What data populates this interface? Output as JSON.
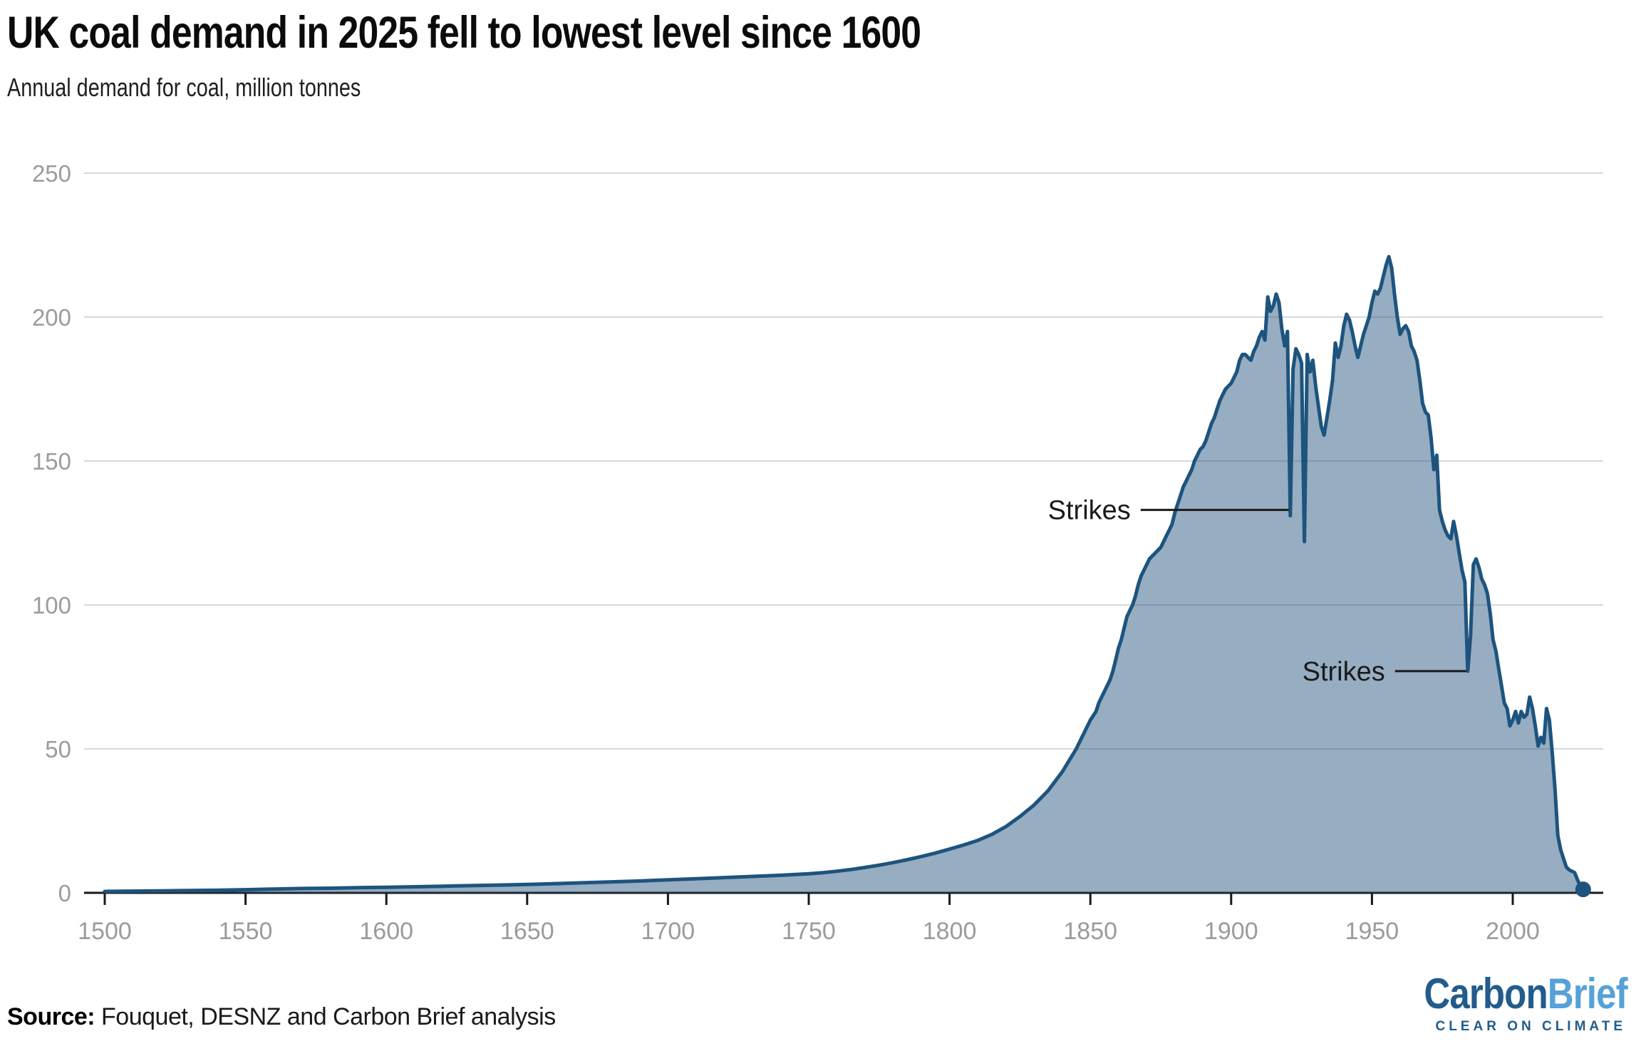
{
  "header": {
    "title": "UK coal demand in 2025 fell to lowest level since 1600",
    "subtitle": "Annual demand for coal, million tonnes"
  },
  "footer": {
    "source_label": "Source:",
    "source_text": " Fouquet, DESNZ and Carbon Brief analysis"
  },
  "logo": {
    "part1": "Carbon",
    "part2": "Brief",
    "tagline": "CLEAR ON CLIMATE",
    "dark_blue": "#215c8c",
    "light_blue": "#56a1d8"
  },
  "chart_data": {
    "type": "area",
    "title": "UK coal demand in 2025 fell to lowest level since 1600",
    "ylabel": "Annual demand for coal, million tonnes",
    "xlabel": "",
    "unit": "million tonnes",
    "grid": true,
    "legend_position": "none",
    "xlim": [
      1500,
      2025
    ],
    "ylim": [
      0,
      250
    ],
    "x_ticks": [
      1500,
      1550,
      1600,
      1650,
      1700,
      1750,
      1800,
      1850,
      1900,
      1950,
      2000
    ],
    "y_ticks": [
      0,
      50,
      100,
      150,
      200,
      250
    ],
    "annotations": [
      {
        "label": "Strikes",
        "year": 1921,
        "value": 133,
        "line_len": 208
      },
      {
        "label": "Strikes",
        "year": 1984,
        "value": 77,
        "line_len": 100
      }
    ],
    "colors": {
      "line": "#1d547e",
      "fill": "rgba(34,80,124,0.47)",
      "grid": "#d9d9d9",
      "axis": "#1a1a1a",
      "tick_label": "#9b9b9b",
      "annotation": "#1a1a1a"
    },
    "series": [
      {
        "name": "UK coal demand",
        "points": [
          [
            1500,
            0.5
          ],
          [
            1510,
            0.6
          ],
          [
            1520,
            0.7
          ],
          [
            1530,
            0.8
          ],
          [
            1540,
            0.9
          ],
          [
            1550,
            1.1
          ],
          [
            1560,
            1.3
          ],
          [
            1570,
            1.5
          ],
          [
            1580,
            1.6
          ],
          [
            1590,
            1.8
          ],
          [
            1600,
            1.9
          ],
          [
            1610,
            2.1
          ],
          [
            1620,
            2.3
          ],
          [
            1630,
            2.5
          ],
          [
            1640,
            2.7
          ],
          [
            1650,
            2.9
          ],
          [
            1660,
            3.2
          ],
          [
            1670,
            3.5
          ],
          [
            1680,
            3.8
          ],
          [
            1690,
            4.1
          ],
          [
            1700,
            4.5
          ],
          [
            1710,
            4.9
          ],
          [
            1720,
            5.3
          ],
          [
            1730,
            5.7
          ],
          [
            1740,
            6.1
          ],
          [
            1750,
            6.6
          ],
          [
            1755,
            7
          ],
          [
            1760,
            7.5
          ],
          [
            1765,
            8.1
          ],
          [
            1770,
            8.8
          ],
          [
            1775,
            9.6
          ],
          [
            1780,
            10.5
          ],
          [
            1785,
            11.5
          ],
          [
            1790,
            12.6
          ],
          [
            1795,
            13.8
          ],
          [
            1800,
            15.2
          ],
          [
            1805,
            16.6
          ],
          [
            1810,
            18.2
          ],
          [
            1815,
            20.3
          ],
          [
            1820,
            23
          ],
          [
            1825,
            26.5
          ],
          [
            1830,
            30.5
          ],
          [
            1835,
            35.5
          ],
          [
            1840,
            42
          ],
          [
            1845,
            50
          ],
          [
            1850,
            60
          ],
          [
            1851,
            61.5
          ],
          [
            1852,
            63
          ],
          [
            1853,
            66
          ],
          [
            1854,
            68
          ],
          [
            1855,
            70
          ],
          [
            1856,
            72
          ],
          [
            1857,
            74
          ],
          [
            1858,
            77
          ],
          [
            1859,
            81
          ],
          [
            1860,
            85
          ],
          [
            1861,
            88
          ],
          [
            1862,
            92
          ],
          [
            1863,
            96
          ],
          [
            1864,
            98
          ],
          [
            1865,
            100
          ],
          [
            1866,
            103
          ],
          [
            1867,
            107
          ],
          [
            1868,
            110
          ],
          [
            1869,
            112
          ],
          [
            1870,
            114
          ],
          [
            1871,
            116
          ],
          [
            1872,
            117
          ],
          [
            1873,
            118
          ],
          [
            1874,
            119
          ],
          [
            1875,
            120
          ],
          [
            1876,
            122
          ],
          [
            1877,
            124
          ],
          [
            1878,
            126
          ],
          [
            1879,
            128
          ],
          [
            1880,
            132
          ],
          [
            1881,
            135
          ],
          [
            1882,
            138
          ],
          [
            1883,
            141
          ],
          [
            1884,
            143
          ],
          [
            1885,
            145
          ],
          [
            1886,
            147
          ],
          [
            1887,
            150
          ],
          [
            1888,
            152
          ],
          [
            1889,
            154
          ],
          [
            1890,
            155
          ],
          [
            1891,
            157
          ],
          [
            1892,
            160
          ],
          [
            1893,
            163
          ],
          [
            1894,
            165
          ],
          [
            1895,
            168
          ],
          [
            1896,
            171
          ],
          [
            1897,
            173
          ],
          [
            1898,
            175
          ],
          [
            1899,
            176
          ],
          [
            1900,
            177
          ],
          [
            1901,
            179
          ],
          [
            1902,
            181
          ],
          [
            1903,
            185
          ],
          [
            1904,
            187
          ],
          [
            1905,
            187
          ],
          [
            1906,
            186
          ],
          [
            1907,
            185
          ],
          [
            1908,
            188
          ],
          [
            1909,
            190
          ],
          [
            1910,
            193
          ],
          [
            1911,
            195
          ],
          [
            1912,
            192
          ],
          [
            1913,
            207
          ],
          [
            1914,
            202
          ],
          [
            1915,
            204
          ],
          [
            1916,
            208
          ],
          [
            1917,
            205
          ],
          [
            1918,
            196
          ],
          [
            1919,
            190
          ],
          [
            1920,
            195
          ],
          [
            1921,
            131
          ],
          [
            1922,
            182
          ],
          [
            1923,
            189
          ],
          [
            1924,
            187
          ],
          [
            1925,
            184
          ],
          [
            1926,
            122
          ],
          [
            1927,
            187
          ],
          [
            1928,
            181
          ],
          [
            1929,
            185
          ],
          [
            1930,
            176
          ],
          [
            1931,
            169
          ],
          [
            1932,
            162
          ],
          [
            1933,
            159
          ],
          [
            1934,
            165
          ],
          [
            1935,
            171
          ],
          [
            1936,
            178
          ],
          [
            1937,
            191
          ],
          [
            1938,
            186
          ],
          [
            1939,
            190
          ],
          [
            1940,
            197
          ],
          [
            1941,
            201
          ],
          [
            1942,
            199
          ],
          [
            1943,
            195
          ],
          [
            1944,
            190
          ],
          [
            1945,
            186
          ],
          [
            1946,
            190
          ],
          [
            1947,
            194
          ],
          [
            1948,
            197
          ],
          [
            1949,
            200
          ],
          [
            1950,
            205
          ],
          [
            1951,
            209
          ],
          [
            1952,
            208
          ],
          [
            1953,
            210
          ],
          [
            1954,
            214
          ],
          [
            1955,
            218
          ],
          [
            1956,
            221
          ],
          [
            1957,
            217
          ],
          [
            1958,
            208
          ],
          [
            1959,
            200
          ],
          [
            1960,
            194
          ],
          [
            1961,
            196
          ],
          [
            1962,
            197
          ],
          [
            1963,
            195
          ],
          [
            1964,
            190
          ],
          [
            1965,
            188
          ],
          [
            1966,
            185
          ],
          [
            1967,
            178
          ],
          [
            1968,
            170
          ],
          [
            1969,
            167
          ],
          [
            1970,
            166
          ],
          [
            1971,
            158
          ],
          [
            1972,
            147
          ],
          [
            1973,
            152
          ],
          [
            1974,
            133
          ],
          [
            1975,
            129
          ],
          [
            1976,
            126
          ],
          [
            1977,
            124
          ],
          [
            1978,
            123
          ],
          [
            1979,
            129
          ],
          [
            1980,
            124
          ],
          [
            1981,
            118
          ],
          [
            1982,
            112
          ],
          [
            1983,
            108
          ],
          [
            1984,
            77
          ],
          [
            1985,
            89
          ],
          [
            1986,
            114
          ],
          [
            1987,
            116
          ],
          [
            1988,
            113
          ],
          [
            1989,
            109
          ],
          [
            1990,
            107
          ],
          [
            1991,
            104
          ],
          [
            1992,
            97
          ],
          [
            1993,
            88
          ],
          [
            1994,
            84
          ],
          [
            1995,
            78
          ],
          [
            1996,
            72
          ],
          [
            1997,
            66
          ],
          [
            1998,
            64
          ],
          [
            1999,
            58
          ],
          [
            2000,
            60
          ],
          [
            2001,
            63
          ],
          [
            2002,
            59
          ],
          [
            2003,
            63
          ],
          [
            2004,
            61
          ],
          [
            2005,
            62
          ],
          [
            2006,
            68
          ],
          [
            2007,
            64
          ],
          [
            2008,
            58
          ],
          [
            2009,
            51
          ],
          [
            2010,
            54
          ],
          [
            2011,
            52
          ],
          [
            2012,
            64
          ],
          [
            2013,
            60
          ],
          [
            2014,
            49
          ],
          [
            2015,
            36
          ],
          [
            2016,
            20
          ],
          [
            2017,
            15
          ],
          [
            2018,
            12
          ],
          [
            2019,
            9
          ],
          [
            2020,
            8
          ],
          [
            2021,
            7.5
          ],
          [
            2022,
            7
          ],
          [
            2023,
            4.5
          ],
          [
            2024,
            2.5
          ],
          [
            2025,
            1.2
          ]
        ]
      }
    ]
  }
}
